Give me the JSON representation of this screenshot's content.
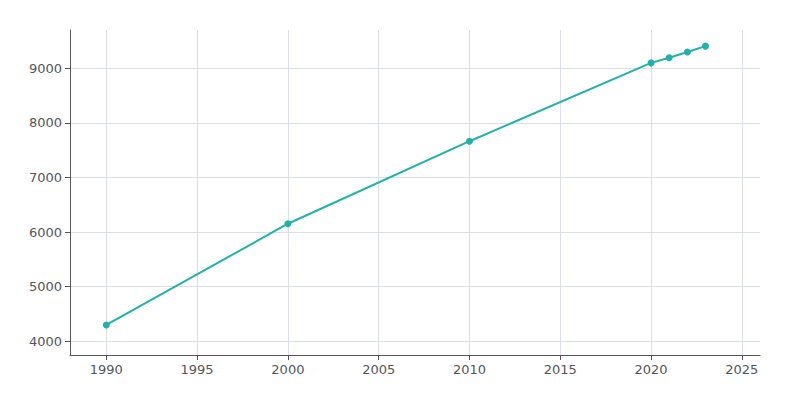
{
  "chart_data": {
    "type": "line",
    "x": [
      1990,
      2000,
      2010,
      2020,
      2021,
      2022,
      2023
    ],
    "values": [
      4300,
      6153,
      7664,
      9098,
      9191,
      9297,
      9405
    ],
    "color": "#20b2aa",
    "marker": "circle",
    "xlim": [
      1988,
      2026
    ],
    "ylim": [
      3750,
      9700
    ],
    "xticks": [
      1990,
      1995,
      2000,
      2005,
      2010,
      2015,
      2020,
      2025
    ],
    "yticks": [
      4000,
      5000,
      6000,
      7000,
      8000,
      9000
    ],
    "grid": true
  }
}
